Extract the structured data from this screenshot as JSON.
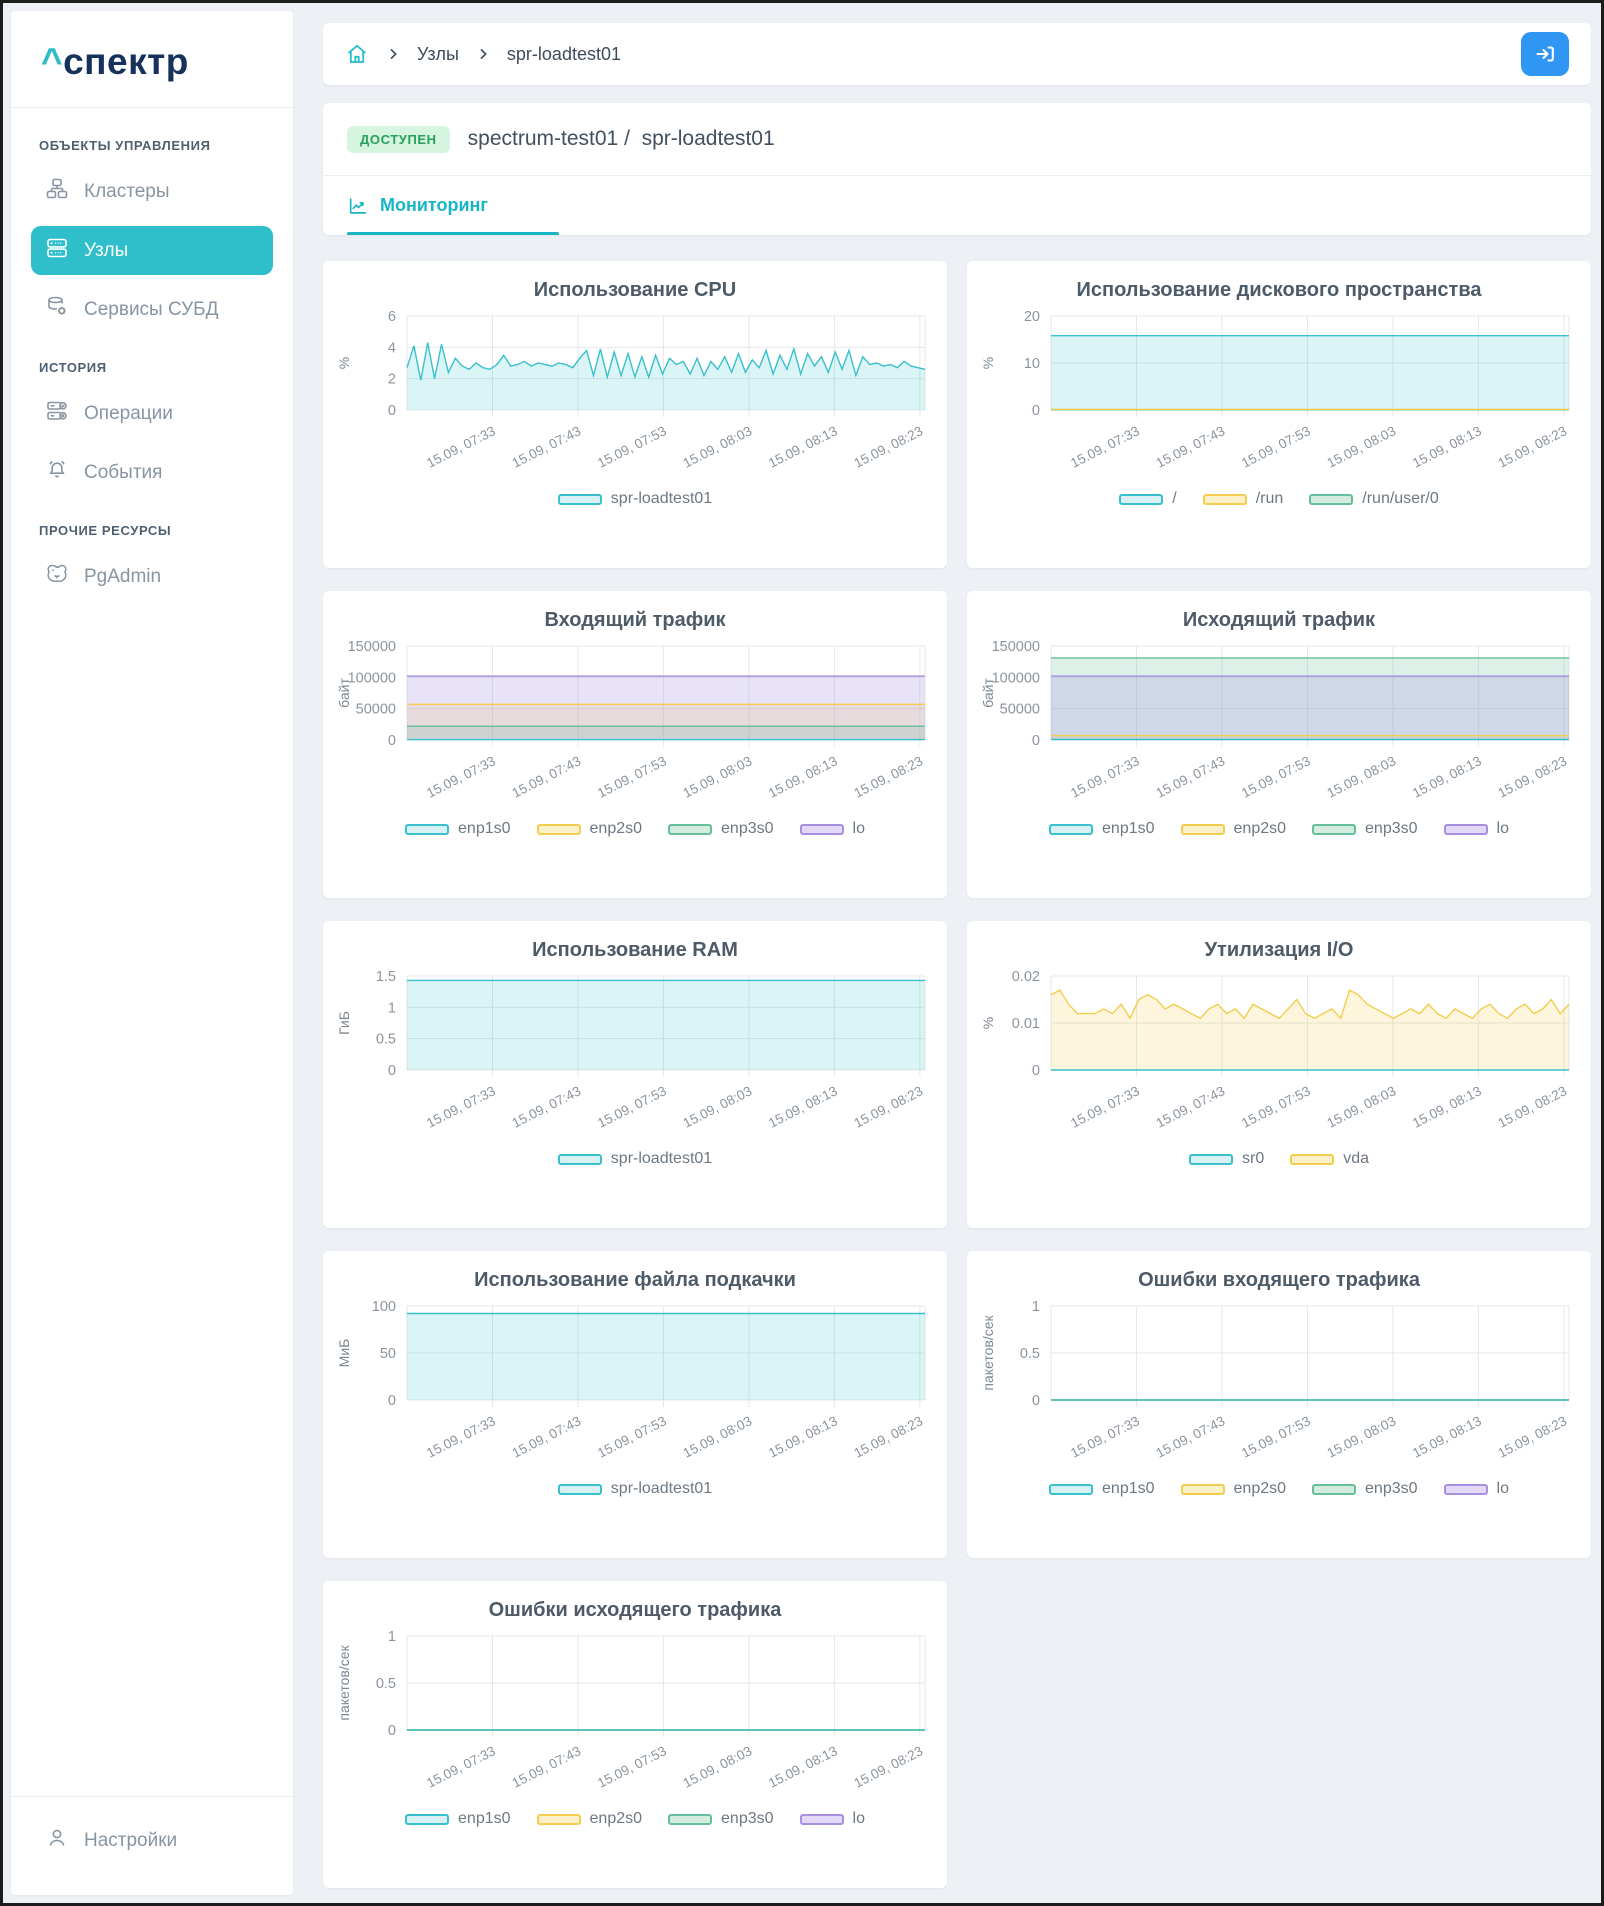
{
  "colors": {
    "accent_teal": "#2ebfca",
    "logo_navy": "#16325c",
    "signin_blue": "#2f96f3",
    "status_green_bg": "#d6f5e0",
    "status_green_text": "#27a05b",
    "grid_line": "#e4e7ea",
    "tick_text": "#8b949d",
    "series": {
      "teal": {
        "line": "#38c1cc",
        "fill": "rgba(56,193,204,0.18)",
        "legend": "#d7f1f4"
      },
      "yellow": {
        "line": "#f3cd4f",
        "fill": "rgba(243,205,79,0.20)",
        "legend": "#fbf0c8"
      },
      "green": {
        "line": "#66bf9b",
        "fill": "rgba(102,191,155,0.22)",
        "legend": "#d3ecdf"
      },
      "purple": {
        "line": "#a88fe0",
        "fill": "rgba(168,143,224,0.25)",
        "legend": "#e2d8f8"
      }
    }
  },
  "sidebar": {
    "logo": {
      "caret": "^",
      "text": "спектр"
    },
    "sections": [
      {
        "label": "ОБЪЕКТЫ УПРАВЛЕНИЯ",
        "items": [
          {
            "label": "Кластеры"
          },
          {
            "label": "Узлы"
          },
          {
            "label": "Сервисы СУБД"
          }
        ]
      },
      {
        "label": "ИСТОРИЯ",
        "items": [
          {
            "label": "Операции"
          },
          {
            "label": "События"
          }
        ]
      },
      {
        "label": "ПРОЧИЕ РЕСУРСЫ",
        "items": [
          {
            "label": "PgAdmin"
          }
        ]
      }
    ],
    "footer": {
      "label": "Настройки"
    }
  },
  "breadcrumb": {
    "items": [
      "Узлы",
      "spr-loadtest01"
    ]
  },
  "header": {
    "status": "ДОСТУПЕН",
    "cluster": "spectrum-test01",
    "separator": "/",
    "node": "spr-loadtest01",
    "tab": "Мониторинг"
  },
  "chart_data": [
    {
      "type": "area",
      "title": "Использование CPU",
      "ylabel": "%",
      "ylim": [
        0,
        6
      ],
      "yticks": [
        0,
        2,
        4,
        6
      ],
      "x": [
        "15.09, 07:33",
        "15.09, 07:43",
        "15.09, 07:53",
        "15.09, 08:03",
        "15.09, 08:13",
        "15.09, 08:23"
      ],
      "grid": true,
      "legend_position": "bottom",
      "series": [
        {
          "name": "spr-loadtest01",
          "color": "teal",
          "values": [
            2.7,
            4.1,
            1.9,
            4.3,
            2.0,
            4.2,
            2.4,
            3.3,
            2.8,
            2.6,
            3.0,
            2.7,
            2.6,
            2.9,
            3.5,
            2.8,
            2.9,
            3.1,
            2.8,
            3.0,
            2.9,
            2.8,
            3.0,
            2.9,
            2.7,
            3.3,
            3.8,
            2.2,
            3.9,
            2.1,
            3.7,
            2.2,
            3.6,
            2.1,
            3.4,
            2.1,
            3.5,
            2.3,
            3.3,
            2.9,
            3.1,
            2.3,
            3.3,
            2.2,
            3.1,
            2.6,
            3.4,
            2.4,
            3.6,
            2.4,
            3.2,
            2.7,
            3.8,
            2.3,
            3.5,
            2.6,
            3.9,
            2.3,
            3.6,
            2.8,
            3.4,
            2.4,
            3.7,
            2.6,
            3.8,
            2.2,
            3.4,
            2.9,
            3.0,
            2.8,
            2.9,
            2.7,
            3.1,
            2.8,
            2.7,
            2.6
          ]
        }
      ]
    },
    {
      "type": "area",
      "title": "Использование дискового пространства",
      "ylabel": "%",
      "ylim": [
        0,
        20
      ],
      "yticks": [
        0,
        10,
        20
      ],
      "x": [
        "15.09, 07:33",
        "15.09, 07:43",
        "15.09, 07:53",
        "15.09, 08:03",
        "15.09, 08:13",
        "15.09, 08:23"
      ],
      "grid": true,
      "legend_position": "bottom",
      "series": [
        {
          "name": "/",
          "color": "teal",
          "values": [
            15.8,
            15.8
          ]
        },
        {
          "name": "/run",
          "color": "yellow",
          "values": [
            0.15,
            0.15
          ]
        },
        {
          "name": "/run/user/0",
          "color": "green",
          "values": [
            0.05,
            0.05
          ]
        }
      ]
    },
    {
      "type": "area",
      "title": "Входящий трафик",
      "ylabel": "байт",
      "ylim": [
        0,
        150000
      ],
      "yticks": [
        0,
        50000,
        100000,
        150000
      ],
      "x": [
        "15.09, 07:33",
        "15.09, 07:43",
        "15.09, 07:53",
        "15.09, 08:03",
        "15.09, 08:13",
        "15.09, 08:23"
      ],
      "grid": true,
      "legend_position": "bottom",
      "series": [
        {
          "name": "enp1s0",
          "color": "teal",
          "values": [
            600,
            600
          ]
        },
        {
          "name": "enp2s0",
          "color": "yellow",
          "values": [
            57000,
            57000
          ]
        },
        {
          "name": "enp3s0",
          "color": "green",
          "values": [
            22000,
            22000
          ]
        },
        {
          "name": "lo",
          "color": "purple",
          "values": [
            102000,
            102000
          ]
        }
      ]
    },
    {
      "type": "area",
      "title": "Исходящий трафик",
      "ylabel": "байт",
      "ylim": [
        0,
        150000
      ],
      "yticks": [
        0,
        50000,
        100000,
        150000
      ],
      "x": [
        "15.09, 07:33",
        "15.09, 07:43",
        "15.09, 07:53",
        "15.09, 08:03",
        "15.09, 08:13",
        "15.09, 08:23"
      ],
      "grid": true,
      "legend_position": "bottom",
      "series": [
        {
          "name": "enp1s0",
          "color": "teal",
          "values": [
            800,
            800
          ]
        },
        {
          "name": "enp2s0",
          "color": "yellow",
          "values": [
            7000,
            7000
          ]
        },
        {
          "name": "enp3s0",
          "color": "green",
          "values": [
            131000,
            131000
          ]
        },
        {
          "name": "lo",
          "color": "purple",
          "values": [
            102000,
            102000
          ]
        }
      ]
    },
    {
      "type": "area",
      "title": "Использование RAM",
      "ylabel": "ГиБ",
      "ylim": [
        0,
        1.5
      ],
      "yticks": [
        0,
        0.5,
        1,
        1.5
      ],
      "x": [
        "15.09, 07:33",
        "15.09, 07:43",
        "15.09, 07:53",
        "15.09, 08:03",
        "15.09, 08:13",
        "15.09, 08:23"
      ],
      "grid": true,
      "legend_position": "bottom",
      "series": [
        {
          "name": "spr-loadtest01",
          "color": "teal",
          "values": [
            1.43,
            1.43
          ]
        }
      ]
    },
    {
      "type": "area",
      "title": "Утилизация I/O",
      "ylabel": "%",
      "ylim": [
        0,
        0.02
      ],
      "yticks": [
        0,
        0.01,
        0.02
      ],
      "x": [
        "15.09, 07:33",
        "15.09, 07:43",
        "15.09, 07:53",
        "15.09, 08:03",
        "15.09, 08:13",
        "15.09, 08:23"
      ],
      "grid": true,
      "legend_position": "bottom",
      "series": [
        {
          "name": "sr0",
          "color": "teal",
          "values": [
            0,
            0
          ]
        },
        {
          "name": "vda",
          "color": "yellow",
          "values": [
            0.016,
            0.017,
            0.014,
            0.012,
            0.012,
            0.012,
            0.013,
            0.012,
            0.014,
            0.011,
            0.015,
            0.016,
            0.015,
            0.013,
            0.014,
            0.013,
            0.012,
            0.011,
            0.013,
            0.014,
            0.012,
            0.013,
            0.011,
            0.014,
            0.013,
            0.012,
            0.011,
            0.013,
            0.015,
            0.012,
            0.011,
            0.012,
            0.013,
            0.011,
            0.017,
            0.016,
            0.014,
            0.013,
            0.012,
            0.011,
            0.012,
            0.013,
            0.012,
            0.014,
            0.012,
            0.011,
            0.013,
            0.012,
            0.011,
            0.013,
            0.014,
            0.012,
            0.011,
            0.013,
            0.014,
            0.012,
            0.013,
            0.015,
            0.012,
            0.014
          ]
        }
      ]
    },
    {
      "type": "area",
      "title": "Использование файла подкачки",
      "ylabel": "МиБ",
      "ylim": [
        0,
        100
      ],
      "yticks": [
        0,
        50,
        100
      ],
      "x": [
        "15.09, 07:33",
        "15.09, 07:43",
        "15.09, 07:53",
        "15.09, 08:03",
        "15.09, 08:13",
        "15.09, 08:23"
      ],
      "grid": true,
      "legend_position": "bottom",
      "series": [
        {
          "name": "spr-loadtest01",
          "color": "teal",
          "values": [
            92,
            92
          ]
        }
      ]
    },
    {
      "type": "area",
      "title": "Ошибки входящего трафика",
      "ylabel": "пакетов/сек",
      "ylim": [
        0,
        1
      ],
      "yticks": [
        0,
        0.5,
        1
      ],
      "x": [
        "15.09, 07:33",
        "15.09, 07:43",
        "15.09, 07:53",
        "15.09, 08:03",
        "15.09, 08:13",
        "15.09, 08:23"
      ],
      "grid": true,
      "legend_position": "bottom",
      "series": [
        {
          "name": "enp1s0",
          "color": "teal",
          "values": [
            0,
            0
          ]
        },
        {
          "name": "enp2s0",
          "color": "yellow",
          "values": [
            0,
            0
          ]
        },
        {
          "name": "enp3s0",
          "color": "green",
          "values": [
            0,
            0
          ]
        },
        {
          "name": "lo",
          "color": "purple",
          "values": [
            0,
            0
          ]
        }
      ]
    },
    {
      "type": "area",
      "title": "Ошибки исходящего трафика",
      "ylabel": "пакетов/сек",
      "ylim": [
        0,
        1
      ],
      "yticks": [
        0,
        0.5,
        1
      ],
      "x": [
        "15.09, 07:33",
        "15.09, 07:43",
        "15.09, 07:53",
        "15.09, 08:03",
        "15.09, 08:13",
        "15.09, 08:23"
      ],
      "grid": true,
      "legend_position": "bottom",
      "series": [
        {
          "name": "enp1s0",
          "color": "teal",
          "values": [
            0,
            0
          ]
        },
        {
          "name": "enp2s0",
          "color": "yellow",
          "values": [
            0,
            0
          ]
        },
        {
          "name": "enp3s0",
          "color": "green",
          "values": [
            0,
            0
          ]
        },
        {
          "name": "lo",
          "color": "purple",
          "values": [
            0,
            0
          ]
        }
      ]
    }
  ]
}
